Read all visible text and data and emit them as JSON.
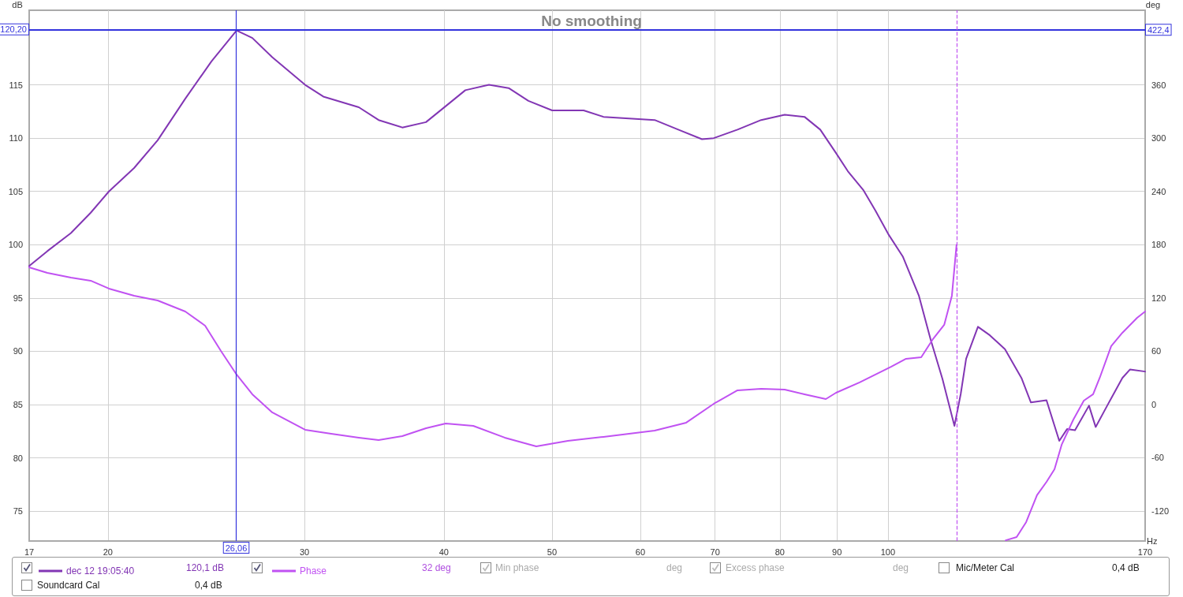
{
  "chart_data": {
    "type": "line",
    "title": "No smoothing",
    "xlabel": "Hz",
    "ylabel": "dB",
    "y2label": "deg",
    "log": "x",
    "xlim": [
      17,
      170
    ],
    "xticks": [
      17,
      20,
      30,
      40,
      50,
      60,
      70,
      80,
      90,
      100,
      170
    ],
    "ylim": [
      72.2,
      122.0
    ],
    "yticks": [
      75,
      80,
      85,
      90,
      95,
      100,
      105,
      110,
      115
    ],
    "y2lim": [
      -153.8,
      444.4
    ],
    "y2ticks": [
      -120,
      -60,
      0,
      60,
      120,
      180,
      240,
      300,
      360
    ],
    "grid": true,
    "legend": "bottom",
    "marker": "none",
    "line_style": "solid",
    "series": [
      {
        "name": "dec 12 19:05:40",
        "color": "#8236b4",
        "x": [
          17,
          17.65,
          18.53,
          19.3,
          20.04,
          21.11,
          22.16,
          23.46,
          24.76,
          26.08,
          26.94,
          28.07,
          30.04,
          31.19,
          33.56,
          34.96,
          36.71,
          38.55,
          40.15,
          41.81,
          43.9,
          45.72,
          47.62,
          50.01,
          53.37,
          55.6,
          61.79,
          64.88,
          68.13,
          69.81,
          73.31,
          76.98,
          80.81,
          84.18,
          86.96,
          89.84,
          92.05,
          95.09,
          97.44,
          100.2,
          103.1,
          106.6,
          109.2,
          111.9,
          114.7,
          116.2,
          117.5,
          120.4,
          123.4,
          127.3,
          131.7,
          134.3,
          138.7,
          142.4,
          144.7,
          147.1,
          151.4,
          153.5,
          157.2,
          162.2,
          164.8,
          170
        ],
        "values": [
          98.0,
          99.4,
          101.1,
          103.0,
          105.0,
          107.2,
          109.8,
          113.7,
          117.2,
          120.1,
          119.4,
          117.6,
          115.0,
          113.9,
          112.9,
          111.7,
          111.0,
          111.5,
          113.0,
          114.5,
          115.0,
          114.7,
          113.5,
          112.6,
          112.6,
          112.0,
          111.7,
          110.8,
          109.9,
          110.0,
          110.8,
          111.7,
          112.2,
          112.0,
          110.8,
          108.6,
          106.9,
          105.1,
          103.2,
          100.9,
          98.9,
          95.2,
          91.1,
          87.4,
          83.0,
          86.0,
          89.3,
          92.3,
          91.5,
          90.2,
          87.5,
          85.2,
          85.4,
          81.6,
          82.7,
          82.6,
          84.9,
          82.9,
          84.9,
          87.5,
          88.3,
          88.1
        ]
      },
      {
        "name": "Phase",
        "color": "#c052f2",
        "axis": "y2",
        "x": [
          17,
          17.65,
          18.53,
          19.3,
          20.04,
          21.11,
          22.16,
          23.46,
          24.44,
          25.25,
          26.08,
          26.94,
          28.07,
          30.04,
          31.7,
          33.56,
          34.96,
          36.71,
          38.55,
          40.15,
          42.5,
          45.35,
          48.4,
          51.66,
          55.6,
          61.79,
          65.95,
          69.81,
          73.31,
          76.98,
          80.81,
          84.18,
          87.97,
          89.84,
          94.32,
          100.7,
          103.8,
          107.1,
          109.6,
          112.3,
          114.1,
          115.2,
          121,
          127.5,
          130.4,
          133.0,
          136.0,
          138.7,
          141.0,
          143.1,
          146.6,
          149.8,
          152.7,
          154.8,
          158.5,
          162.2,
          167.2,
          170
        ],
        "values": [
          154.7,
          148.4,
          143.1,
          139.6,
          130.7,
          122.7,
          117.3,
          104.9,
          88.9,
          60.4,
          33.8,
          11.6,
          -8.9,
          -28.4,
          -32.9,
          -37.3,
          -40.0,
          -35.6,
          -26.7,
          -21.3,
          -24.0,
          -37.3,
          -47.1,
          -40.9,
          -36.4,
          -29.3,
          -20.4,
          0.9,
          16.0,
          17.8,
          16.9,
          11.6,
          6.2,
          13.3,
          24.9,
          42.7,
          51.6,
          53.3,
          72.9,
          89.8,
          122.7,
          180,
          null,
          -153,
          -149.3,
          -132.4,
          -102.2,
          -87.1,
          -72.9,
          -45.3,
          -16.9,
          4.4,
          11.6,
          30.2,
          65.8,
          80.9,
          97.8,
          104.9
        ]
      }
    ],
    "ref_lines": [
      {
        "axis": "y",
        "value": 120.2,
        "label": "120,20",
        "color": "#3333dd"
      },
      {
        "axis": "x",
        "value": 26.06,
        "label": "26,06",
        "color": "#3333dd"
      },
      {
        "axis": "y2",
        "value": 422.4,
        "label": "422,4",
        "color": "#3333dd"
      },
      {
        "axis": "x",
        "value": 115.2,
        "color": "#c052f2",
        "line_style": "dashed"
      }
    ],
    "annotations": [
      "120,1 dB",
      "32 deg",
      "Min phase",
      "deg",
      "Excess phase",
      "deg",
      "Mic/Meter Cal",
      "0,4 dB",
      "Soundcard Cal",
      "0,4 dB"
    ]
  }
}
